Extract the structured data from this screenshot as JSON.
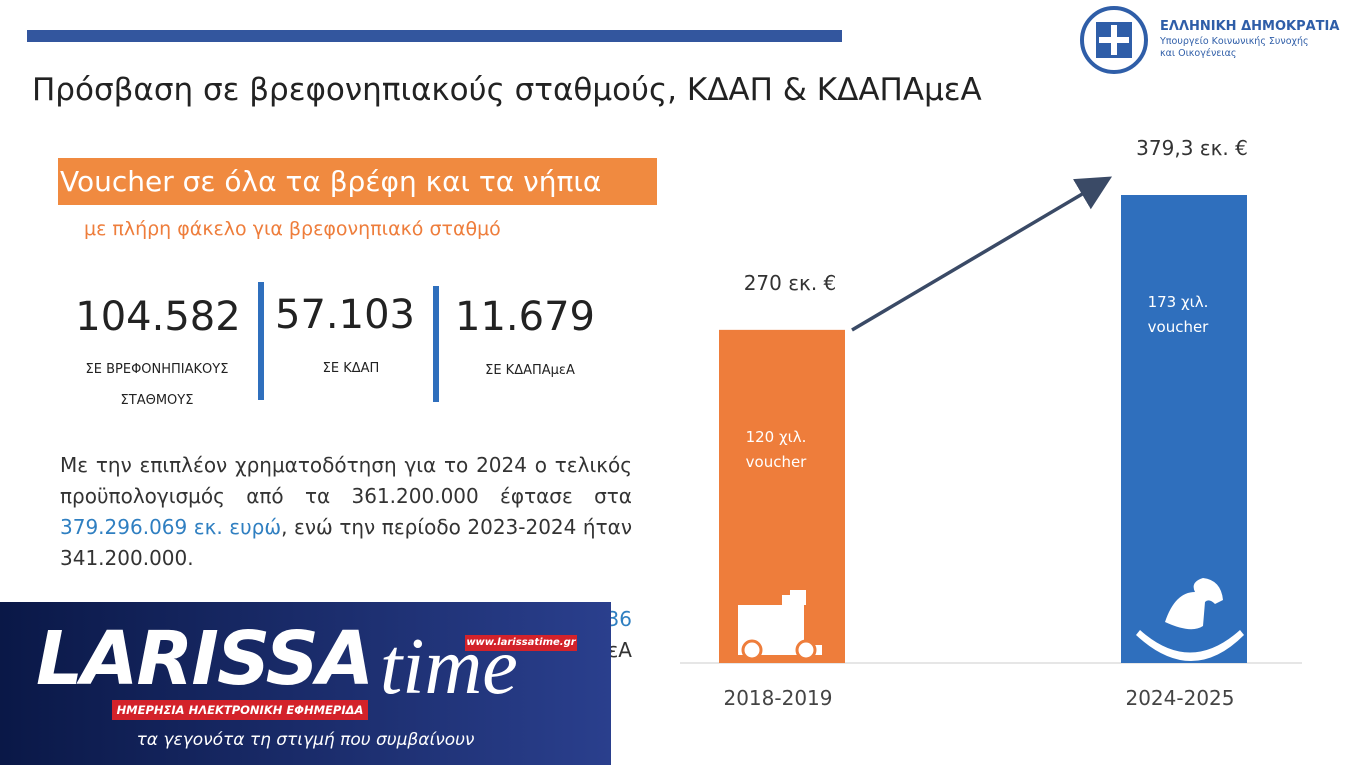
{
  "header": {
    "title": "Πρόσβαση σε βρεφονηπιακούς σταθμούς, ΚΔΑΠ & ΚΔΑΠΑμεΑ",
    "ministry": {
      "country": "ΕΛΛΗΝΙΚΗ ΔΗΜΟΚΡΑΤΙΑ",
      "line1": "Υπουργείο Κοινωνικής Συνοχής",
      "line2": "και Οικογένειας"
    }
  },
  "banner": {
    "title": "Voucher σε όλα τα βρέφη και τα νήπια",
    "subtitle": "με πλήρη φάκελο για βρεφονηπιακό σταθμό"
  },
  "stats": [
    {
      "number": "104.582",
      "label1": "ΣΕ ΒΡΕΦΟΝΗΠΙΑΚΟΥΣ",
      "label2": "ΣΤΑΘΜΟΥΣ"
    },
    {
      "number": "57.103",
      "label1": "ΣΕ ΚΔΑΠ"
    },
    {
      "number": "11.679",
      "label1": "ΣΕ ΚΔΑΠΑμεΑ"
    }
  ],
  "paragraph": {
    "before": "Με την επιπλέον χρηματοδότηση για το 2024 ο τελικός προϋπολογισμός από τα 361.200.000 έφτασε στα ",
    "highlight": "379.296.069 εκ. ευρώ",
    "after": ", ενώ την περίοδο 2023-2024 ήταν 341.200.000."
  },
  "hidden_fragments": [
    "36",
    "εΑ"
  ],
  "watermark": {
    "url": "www.larissatime.gr",
    "brand1": "LARISSA",
    "brand2": "time",
    "strap": "ΗΜΕΡΗΣΙΑ ΗΛΕΚΤΡΟΝΙΚΗ ΕΦΗΜΕΡΙΔΑ",
    "tagline": "τα γεγονότα τη στιγμή που συμβαίνουν"
  },
  "chart_data": {
    "type": "bar",
    "categories": [
      "2018-2019",
      "2024-2025"
    ],
    "values": [
      270,
      379.3
    ],
    "value_labels": [
      "270 εκ. €",
      "379,3 εκ. €"
    ],
    "colors": [
      "#ee7d3b",
      "#2f6fbd"
    ],
    "inner_labels": [
      [
        "120 χιλ.",
        "voucher"
      ],
      [
        "173 χιλ.",
        "voucher"
      ]
    ]
  }
}
